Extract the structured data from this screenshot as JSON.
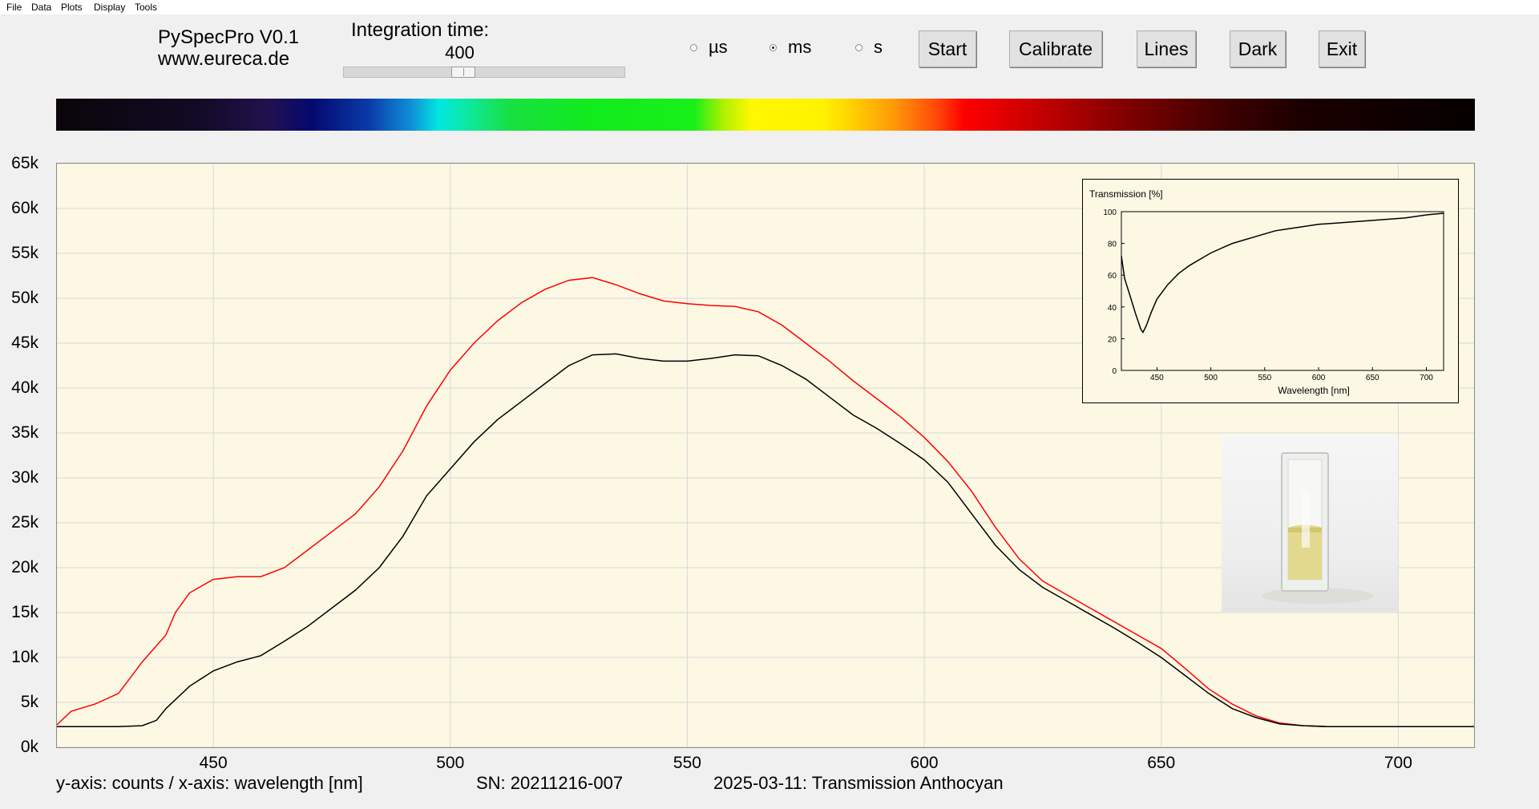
{
  "menu": {
    "items": [
      "File",
      "Data",
      "Plots",
      "Display",
      "Tools"
    ]
  },
  "app": {
    "name": "PySpecPro V0.1",
    "url": "www.eureca.de"
  },
  "integration": {
    "label": "Integration time:",
    "value": "400",
    "slider_fraction": 0.42
  },
  "units": {
    "options": [
      "µs",
      "ms",
      "s"
    ],
    "selected": "ms"
  },
  "buttons": {
    "start": "Start",
    "calibrate": "Calibrate",
    "lines": "Lines",
    "dark": "Dark",
    "exit": "Exit"
  },
  "colors": {
    "dark_trace": "#000000",
    "light_trace": "#ff0000",
    "plot_background": "#fdf8e4",
    "grid": "#d8d8d8"
  },
  "chart_data": [
    {
      "type": "line",
      "title": "",
      "xlabel": "",
      "ylabel": "",
      "xlim": [
        417,
        716
      ],
      "ylim": [
        0,
        65000
      ],
      "grid": true,
      "x_ticks": [
        450,
        500,
        550,
        600,
        650,
        700
      ],
      "y_ticks": [
        "0k",
        "5k",
        "10k",
        "15k",
        "20k",
        "25k",
        "30k",
        "35k",
        "40k",
        "45k",
        "50k",
        "55k",
        "60k",
        "65k"
      ],
      "series": [
        {
          "color": "#ff0000",
          "x": [
            417,
            420,
            425,
            430,
            435,
            440,
            442,
            445,
            450,
            455,
            460,
            465,
            470,
            475,
            480,
            485,
            490,
            495,
            500,
            505,
            510,
            515,
            520,
            525,
            530,
            535,
            540,
            545,
            550,
            555,
            560,
            565,
            570,
            575,
            580,
            585,
            590,
            595,
            600,
            605,
            610,
            615,
            620,
            625,
            630,
            635,
            640,
            645,
            650,
            655,
            660,
            665,
            670,
            675,
            680,
            685,
            690,
            700,
            716
          ],
          "y": [
            2500,
            4000,
            4800,
            6000,
            9500,
            12500,
            15000,
            17200,
            18700,
            19000,
            19000,
            20000,
            22000,
            24000,
            26000,
            29000,
            33000,
            38000,
            42000,
            45000,
            47500,
            49500,
            51000,
            52000,
            52300,
            51500,
            50500,
            49700,
            49400,
            49200,
            49100,
            48500,
            47000,
            45000,
            43000,
            40800,
            38800,
            36800,
            34500,
            31800,
            28500,
            24500,
            21000,
            18500,
            17000,
            15500,
            14000,
            12500,
            11000,
            8800,
            6500,
            4800,
            3500,
            2700,
            2400,
            2300,
            2300,
            2300,
            2300
          ]
        },
        {
          "color": "#000000",
          "x": [
            417,
            420,
            425,
            430,
            435,
            438,
            440,
            445,
            450,
            455,
            460,
            465,
            470,
            475,
            480,
            485,
            490,
            495,
            500,
            505,
            510,
            515,
            520,
            525,
            530,
            535,
            540,
            545,
            550,
            555,
            560,
            565,
            570,
            575,
            580,
            585,
            590,
            595,
            600,
            605,
            610,
            615,
            620,
            625,
            630,
            635,
            640,
            645,
            650,
            655,
            660,
            665,
            670,
            675,
            680,
            685,
            690,
            700,
            716
          ],
          "y": [
            2300,
            2300,
            2300,
            2300,
            2400,
            3000,
            4300,
            6800,
            8500,
            9500,
            10200,
            11800,
            13500,
            15500,
            17500,
            20000,
            23500,
            28000,
            31000,
            34000,
            36500,
            38500,
            40500,
            42500,
            43700,
            43800,
            43300,
            43000,
            43000,
            43300,
            43700,
            43600,
            42500,
            41000,
            39000,
            37000,
            35500,
            33800,
            32000,
            29500,
            26000,
            22500,
            19800,
            17800,
            16300,
            14800,
            13300,
            11700,
            10000,
            8000,
            6000,
            4300,
            3300,
            2600,
            2400,
            2300,
            2300,
            2300,
            2300
          ]
        }
      ]
    },
    {
      "type": "line",
      "title": "Transmission [%]",
      "xlabel": "Wavelength [nm]",
      "ylabel": "",
      "xlim": [
        417,
        716
      ],
      "ylim": [
        0,
        100
      ],
      "x_ticks": [
        450,
        500,
        550,
        600,
        650,
        700
      ],
      "y_ticks": [
        0,
        20,
        40,
        60,
        80,
        100
      ],
      "series": [
        {
          "color": "#000000",
          "x": [
            417,
            420,
            425,
            430,
            435,
            437,
            440,
            445,
            450,
            460,
            470,
            480,
            490,
            500,
            510,
            520,
            530,
            540,
            550,
            560,
            570,
            580,
            590,
            600,
            620,
            640,
            660,
            680,
            700,
            716
          ],
          "y": [
            72,
            58,
            47,
            36,
            26,
            24,
            28,
            37,
            45,
            54,
            61,
            66,
            70,
            74,
            77,
            80,
            82,
            84,
            86,
            88,
            89,
            90,
            91,
            92,
            93,
            94,
            95,
            96,
            98,
            99
          ]
        }
      ]
    }
  ],
  "status": {
    "axes_info": "y-axis: counts / x-axis: wavelength [nm]",
    "serial": "SN: 20211216-007",
    "measurement": "2025-03-11: Transmission Anthocyan"
  }
}
